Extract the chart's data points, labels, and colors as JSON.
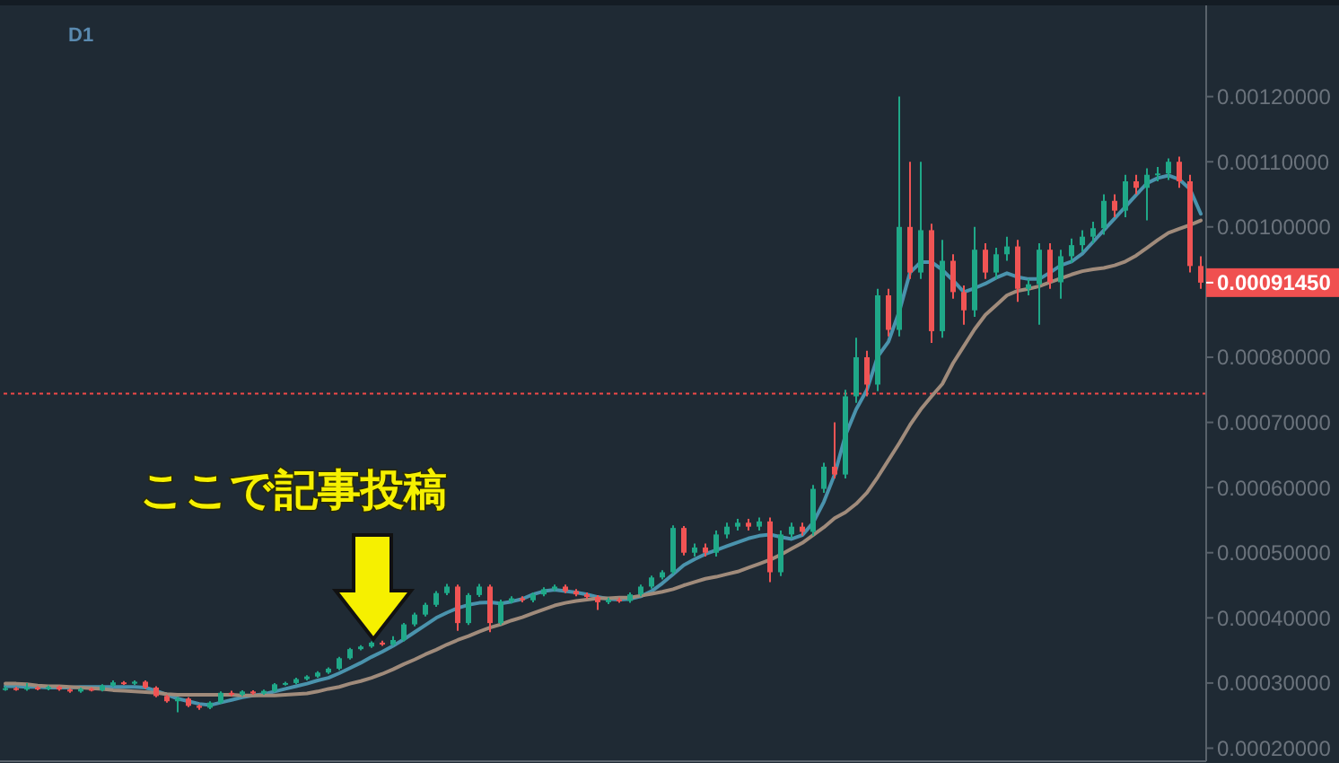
{
  "chart_data": {
    "type": "candlestick",
    "title": "D1",
    "categories": [
      null,
      null,
      null,
      null,
      null,
      null,
      null,
      null,
      null,
      null,
      null,
      null,
      null,
      null,
      null,
      null,
      null,
      null,
      null,
      null,
      null,
      null,
      null,
      null,
      null,
      null,
      null,
      null,
      null,
      null,
      null,
      null,
      null,
      null,
      null,
      null,
      null,
      null,
      null,
      null,
      null,
      null,
      null,
      null,
      null,
      null,
      null,
      null,
      null,
      null,
      null,
      null,
      null,
      null,
      null,
      null,
      null,
      null,
      null,
      null,
      null,
      null,
      null,
      null,
      null,
      null,
      null,
      null,
      null,
      null,
      null,
      null,
      null,
      null,
      null,
      null,
      null,
      null,
      null,
      null,
      null,
      null,
      null,
      null,
      null,
      null,
      null,
      null,
      null,
      null,
      null,
      null,
      null,
      null,
      null,
      null,
      null,
      null,
      null,
      null,
      null,
      null,
      null,
      null,
      null,
      null,
      null,
      null,
      null,
      null,
      null,
      null
    ],
    "ohlc": [
      [
        0.00029,
        0.000295,
        0.000288,
        0.000292
      ],
      [
        0.000292,
        0.000294,
        0.000288,
        0.00029
      ],
      [
        0.00029,
        0.0003,
        0.000288,
        0.000293
      ],
      [
        0.000293,
        0.000295,
        0.000289,
        0.000291
      ],
      [
        0.000291,
        0.000296,
        0.000289,
        0.000294
      ],
      [
        0.000294,
        0.000296,
        0.000288,
        0.00029
      ],
      [
        0.00029,
        0.000292,
        0.000285,
        0.000287
      ],
      [
        0.000287,
        0.000293,
        0.000285,
        0.000291
      ],
      [
        0.000291,
        0.000293,
        0.000287,
        0.000289
      ],
      [
        0.000289,
        0.000298,
        0.000287,
        0.000296
      ],
      [
        0.000296,
        0.000304,
        0.000294,
        0.000301
      ],
      [
        0.000301,
        0.000303,
        0.000297,
        0.000299
      ],
      [
        0.000299,
        0.000304,
        0.000297,
        0.000302
      ],
      [
        0.000302,
        0.000304,
        0.000291,
        0.000293
      ],
      [
        0.000293,
        0.000295,
        0.000278,
        0.00028
      ],
      [
        0.00028,
        0.000282,
        0.00027,
        0.000272
      ],
      [
        0.000272,
        0.000279,
        0.000255,
        0.000276
      ],
      [
        0.000276,
        0.000278,
        0.000263,
        0.000265
      ],
      [
        0.000265,
        0.000267,
        0.000259,
        0.000262
      ],
      [
        0.000262,
        0.000272,
        0.00026,
        0.00027
      ],
      [
        0.00027,
        0.000287,
        0.000268,
        0.000285
      ],
      [
        0.000285,
        0.000288,
        0.00028,
        0.000282
      ],
      [
        0.000282,
        0.000289,
        0.00028,
        0.000287
      ],
      [
        0.000287,
        0.000289,
        0.000282,
        0.000284
      ],
      [
        0.000284,
        0.00029,
        0.000282,
        0.000288
      ],
      [
        0.000288,
        0.0003,
        0.000286,
        0.000298
      ],
      [
        0.000298,
        0.000302,
        0.000296,
        0.0003
      ],
      [
        0.0003,
        0.000308,
        0.000298,
        0.000306
      ],
      [
        0.000306,
        0.000312,
        0.000304,
        0.00031
      ],
      [
        0.00031,
        0.000318,
        0.000308,
        0.000316
      ],
      [
        0.000316,
        0.000324,
        0.000314,
        0.000322
      ],
      [
        0.000322,
        0.00034,
        0.00032,
        0.000338
      ],
      [
        0.000338,
        0.000354,
        0.000336,
        0.000352
      ],
      [
        0.000352,
        0.000358,
        0.00035,
        0.000356
      ],
      [
        0.000356,
        0.000364,
        0.000354,
        0.000362
      ],
      [
        0.000362,
        0.000365,
        0.000357,
        0.000359
      ],
      [
        0.000359,
        0.000372,
        0.000357,
        0.000366
      ],
      [
        0.000366,
        0.000392,
        0.000364,
        0.00039
      ],
      [
        0.00039,
        0.000408,
        0.000387,
        0.000405
      ],
      [
        0.000405,
        0.000423,
        0.000402,
        0.00042
      ],
      [
        0.00042,
        0.000441,
        0.000417,
        0.000438
      ],
      [
        0.000438,
        0.000452,
        0.000435,
        0.000448
      ],
      [
        0.000448,
        0.000451,
        0.00038,
        0.000392
      ],
      [
        0.000392,
        0.000438,
        0.000389,
        0.000435
      ],
      [
        0.000435,
        0.000452,
        0.000432,
        0.000448
      ],
      [
        0.000448,
        0.000451,
        0.000378,
        0.000392
      ],
      [
        0.000392,
        0.000428,
        0.000389,
        0.000425
      ],
      [
        0.000425,
        0.000433,
        0.000422,
        0.00043
      ],
      [
        0.00043,
        0.000433,
        0.000424,
        0.000427
      ],
      [
        0.000427,
        0.000439,
        0.000424,
        0.000436
      ],
      [
        0.000436,
        0.000447,
        0.000433,
        0.000444
      ],
      [
        0.000444,
        0.000451,
        0.000441,
        0.000448
      ],
      [
        0.000448,
        0.000451,
        0.000438,
        0.000441
      ],
      [
        0.000441,
        0.000444,
        0.000433,
        0.000436
      ],
      [
        0.000436,
        0.000439,
        0.000429,
        0.000432
      ],
      [
        0.000432,
        0.000435,
        0.000412,
        0.000424
      ],
      [
        0.000424,
        0.000431,
        0.000421,
        0.000428
      ],
      [
        0.000428,
        0.000431,
        0.000423,
        0.000426
      ],
      [
        0.000426,
        0.000439,
        0.000423,
        0.000436
      ],
      [
        0.000436,
        0.000451,
        0.000433,
        0.000448
      ],
      [
        0.000448,
        0.000465,
        0.000445,
        0.000462
      ],
      [
        0.000462,
        0.000473,
        0.000459,
        0.00047
      ],
      [
        0.00047,
        0.000542,
        0.000467,
        0.000538
      ],
      [
        0.000538,
        0.000541,
        0.000496,
        0.0005
      ],
      [
        0.0005,
        0.000514,
        0.000494,
        0.000508
      ],
      [
        0.000508,
        0.000514,
        0.000494,
        0.0005
      ],
      [
        0.0005,
        0.000534,
        0.000494,
        0.000528
      ],
      [
        0.000528,
        0.000546,
        0.000522,
        0.00054
      ],
      [
        0.00054,
        0.000552,
        0.000534,
        0.000546
      ],
      [
        0.000546,
        0.000552,
        0.000534,
        0.00054
      ],
      [
        0.00054,
        0.000554,
        0.000534,
        0.000548
      ],
      [
        0.000548,
        0.000554,
        0.000455,
        0.00047
      ],
      [
        0.00047,
        0.000534,
        0.000464,
        0.000528
      ],
      [
        0.000528,
        0.000546,
        0.000522,
        0.00054
      ],
      [
        0.00054,
        0.000546,
        0.000526,
        0.000532
      ],
      [
        0.000532,
        0.000604,
        0.000526,
        0.000598
      ],
      [
        0.000598,
        0.000638,
        0.000592,
        0.000632
      ],
      [
        0.000632,
        0.0007,
        0.000614,
        0.00062
      ],
      [
        0.00062,
        0.00075,
        0.000614,
        0.00074
      ],
      [
        0.00074,
        0.00083,
        0.00073,
        0.0008
      ],
      [
        0.0008,
        0.00081,
        0.00074,
        0.000758
      ],
      [
        0.000758,
        0.000905,
        0.000748,
        0.000895
      ],
      [
        0.000895,
        0.000905,
        0.000832,
        0.000842
      ],
      [
        0.000842,
        0.0012,
        0.000832,
        0.001
      ],
      [
        0.001,
        0.0011,
        0.00092,
        0.00093
      ],
      [
        0.00093,
        0.0011,
        0.00092,
        0.000995
      ],
      [
        0.000995,
        0.001005,
        0.000822,
        0.00084
      ],
      [
        0.00084,
        0.00098,
        0.00083,
        0.000948
      ],
      [
        0.000948,
        0.000958,
        0.00089,
        0.0009
      ],
      [
        0.0009,
        0.00091,
        0.00085,
        0.000872
      ],
      [
        0.000872,
        0.001,
        0.000862,
        0.000965
      ],
      [
        0.000965,
        0.000975,
        0.00092,
        0.00093
      ],
      [
        0.00093,
        0.000968,
        0.00092,
        0.000958
      ],
      [
        0.000958,
        0.000985,
        0.000948,
        0.00097
      ],
      [
        0.00097,
        0.00098,
        0.000885,
        0.000905
      ],
      [
        0.000905,
        0.00092,
        0.000895,
        0.000912
      ],
      [
        0.000912,
        0.000975,
        0.00085,
        0.000965
      ],
      [
        0.000965,
        0.000975,
        0.000905,
        0.000915
      ],
      [
        0.000915,
        0.000965,
        0.00089,
        0.000955
      ],
      [
        0.000955,
        0.000982,
        0.000945,
        0.000972
      ],
      [
        0.000972,
        0.000995,
        0.000962,
        0.000985
      ],
      [
        0.000985,
        0.001008,
        0.000975,
        0.000998
      ],
      [
        0.000998,
        0.00105,
        0.000988,
        0.00104
      ],
      [
        0.00104,
        0.00105,
        0.001015,
        0.001025
      ],
      [
        0.001025,
        0.00108,
        0.001015,
        0.00107
      ],
      [
        0.00107,
        0.00108,
        0.00105,
        0.00106
      ],
      [
        0.00106,
        0.00109,
        0.00101,
        0.00108
      ],
      [
        0.00108,
        0.001092,
        0.00107,
        0.001082
      ],
      [
        0.001082,
        0.001105,
        0.001072,
        0.0011
      ],
      [
        0.0011,
        0.001108,
        0.00106,
        0.00107
      ],
      [
        0.00107,
        0.00108,
        0.00093,
        0.00094
      ],
      [
        0.00094,
        0.000955,
        0.000905,
        0.0009145
      ]
    ],
    "colors": [
      "#1fa888",
      "#f05454",
      "#1fa888",
      "#f05454",
      "#1fa888",
      "#f05454",
      "#f05454",
      "#1fa888",
      "#f05454",
      "#1fa888",
      "#1fa888",
      "#f05454",
      "#1fa888",
      "#f05454",
      "#f05454",
      "#f05454",
      "#1fa888",
      "#f05454",
      "#f05454",
      "#1fa888",
      "#1fa888",
      "#f05454",
      "#1fa888",
      "#f05454",
      "#1fa888",
      "#1fa888",
      "#1fa888",
      "#1fa888",
      "#1fa888",
      "#1fa888",
      "#1fa888",
      "#1fa888",
      "#1fa888",
      "#1fa888",
      "#1fa888",
      "#f05454",
      "#1fa888",
      "#1fa888",
      "#1fa888",
      "#1fa888",
      "#1fa888",
      "#1fa888",
      "#f05454",
      "#1fa888",
      "#1fa888",
      "#f05454",
      "#1fa888",
      "#1fa888",
      "#f05454",
      "#1fa888",
      "#1fa888",
      "#1fa888",
      "#f05454",
      "#f05454",
      "#f05454",
      "#f05454",
      "#1fa888",
      "#f05454",
      "#1fa888",
      "#1fa888",
      "#1fa888",
      "#1fa888",
      "#1fa888",
      "#f05454",
      "#1fa888",
      "#f05454",
      "#1fa888",
      "#1fa888",
      "#1fa888",
      "#f05454",
      "#1fa888",
      "#f05454",
      "#1fa888",
      "#1fa888",
      "#f05454",
      "#1fa888",
      "#1fa888",
      "#f05454",
      "#1fa888",
      "#1fa888",
      "#f05454",
      "#1fa888",
      "#f05454",
      "#1fa888",
      "#f05454",
      "#1fa888",
      "#f05454",
      "#1fa888",
      "#f05454",
      "#f05454",
      "#1fa888",
      "#f05454",
      "#1fa888",
      "#1fa888",
      "#f05454",
      "#1fa888",
      "#1fa888",
      "#f05454",
      "#1fa888",
      "#1fa888",
      "#1fa888",
      "#1fa888",
      "#1fa888",
      "#f05454",
      "#1fa888",
      "#f05454",
      "#1fa888",
      "#1fa888",
      "#1fa888",
      "#f05454",
      "#f05454",
      "#f05454"
    ],
    "series": [
      {
        "type": "line",
        "color": "#4a93ad",
        "values": [
          0.000295,
          0.000295,
          0.000294,
          0.000294,
          0.000293,
          0.000293,
          0.000293,
          0.000294,
          0.000294,
          0.000294,
          0.000294,
          0.000294,
          0.000294,
          0.000293,
          0.000288,
          0.000282,
          0.000276,
          0.000272,
          0.000268,
          0.000266,
          0.00027,
          0.000274,
          0.000278,
          0.000281,
          0.000283,
          0.000287,
          0.000291,
          0.000295,
          0.000299,
          0.000304,
          0.000308,
          0.000315,
          0.000323,
          0.000331,
          0.00034,
          0.000348,
          0.000357,
          0.000367,
          0.000378,
          0.000389,
          0.0004,
          0.000408,
          0.000415,
          0.00042,
          0.000423,
          0.000424,
          0.000422,
          0.000425,
          0.000429,
          0.000436,
          0.000441,
          0.000443,
          0.000441,
          0.000439,
          0.000436,
          0.000432,
          0.000429,
          0.000428,
          0.000429,
          0.000433,
          0.000441,
          0.000453,
          0.000467,
          0.000481,
          0.00049,
          0.000498,
          0.000504,
          0.00051,
          0.000516,
          0.000522,
          0.000526,
          0.000528,
          0.000524,
          0.000521,
          0.000527,
          0.000546,
          0.000578,
          0.00062,
          0.00068,
          0.00072,
          0.00075,
          0.000801,
          0.000824,
          0.00087,
          0.00093,
          0.000946,
          0.000946,
          0.000934,
          0.000918,
          0.0009,
          0.000906,
          0.000913,
          0.000922,
          0.000929,
          0.000923,
          0.00092,
          0.00092,
          0.00093,
          0.000941,
          0.000947,
          0.000959,
          0.000977,
          0.000995,
          0.001013,
          0.001031,
          0.001049,
          0.001067,
          0.001075,
          0.001079,
          0.001073,
          0.001058,
          0.00102
        ]
      },
      {
        "type": "line",
        "color": "#a08b7b",
        "values": [
          0.000299,
          0.000299,
          0.000298,
          0.000296,
          0.000295,
          0.000295,
          0.000294,
          0.000293,
          0.000292,
          0.000291,
          0.000289,
          0.000288,
          0.000287,
          0.000286,
          0.000285,
          0.000283,
          0.000282,
          0.000282,
          0.000282,
          0.000282,
          0.000282,
          0.000282,
          0.000281,
          0.000281,
          0.000281,
          0.000281,
          0.000282,
          0.000283,
          0.000284,
          0.000287,
          0.000291,
          0.000294,
          0.000299,
          0.000303,
          0.000308,
          0.000314,
          0.000321,
          0.000329,
          0.000336,
          0.000344,
          0.000351,
          0.000359,
          0.000366,
          0.000372,
          0.000379,
          0.000385,
          0.00039,
          0.000396,
          0.000401,
          0.000407,
          0.000413,
          0.000419,
          0.000423,
          0.000426,
          0.000428,
          0.00043,
          0.00043,
          0.000431,
          0.000431,
          0.000434,
          0.000437,
          0.00044,
          0.000444,
          0.00045,
          0.000455,
          0.00046,
          0.000463,
          0.000467,
          0.000471,
          0.000477,
          0.000483,
          0.000489,
          0.000497,
          0.000506,
          0.000515,
          0.000527,
          0.000539,
          0.000553,
          0.000562,
          0.000575,
          0.000592,
          0.000616,
          0.000642,
          0.000668,
          0.000696,
          0.00072,
          0.00074,
          0.000759,
          0.000791,
          0.000817,
          0.000843,
          0.000865,
          0.00088,
          0.000895,
          0.000902,
          0.000905,
          0.000909,
          0.000915,
          0.000921,
          0.000927,
          0.000932,
          0.000935,
          0.000937,
          0.000941,
          0.000947,
          0.000956,
          0.000968,
          0.00098,
          0.000991,
          0.000997,
          0.001003,
          0.00101
        ]
      }
    ],
    "ylim": [
      0.00018,
      0.00134
    ],
    "yticks": [
      {
        "value": 0.0002,
        "label": "0.00020000"
      },
      {
        "value": 0.0003,
        "label": "0.00030000"
      },
      {
        "value": 0.0004,
        "label": "0.00040000"
      },
      {
        "value": 0.0005,
        "label": "0.00050000"
      },
      {
        "value": 0.0006,
        "label": "0.00060000"
      },
      {
        "value": 0.0007,
        "label": "0.00070000"
      },
      {
        "value": 0.0008,
        "label": "0.00080000"
      },
      {
        "value": 0.001,
        "label": "0.00100000"
      },
      {
        "value": 0.0011,
        "label": "0.00110000"
      },
      {
        "value": 0.0012,
        "label": "0.00120000"
      }
    ],
    "ref_lines": [
      {
        "axis": "y",
        "value": 0.000744,
        "color": "#f04848",
        "line_style": "dotted"
      }
    ],
    "annotations": [
      "0.00091450",
      "ここで記事投稿"
    ],
    "tick_labels": "y"
  }
}
